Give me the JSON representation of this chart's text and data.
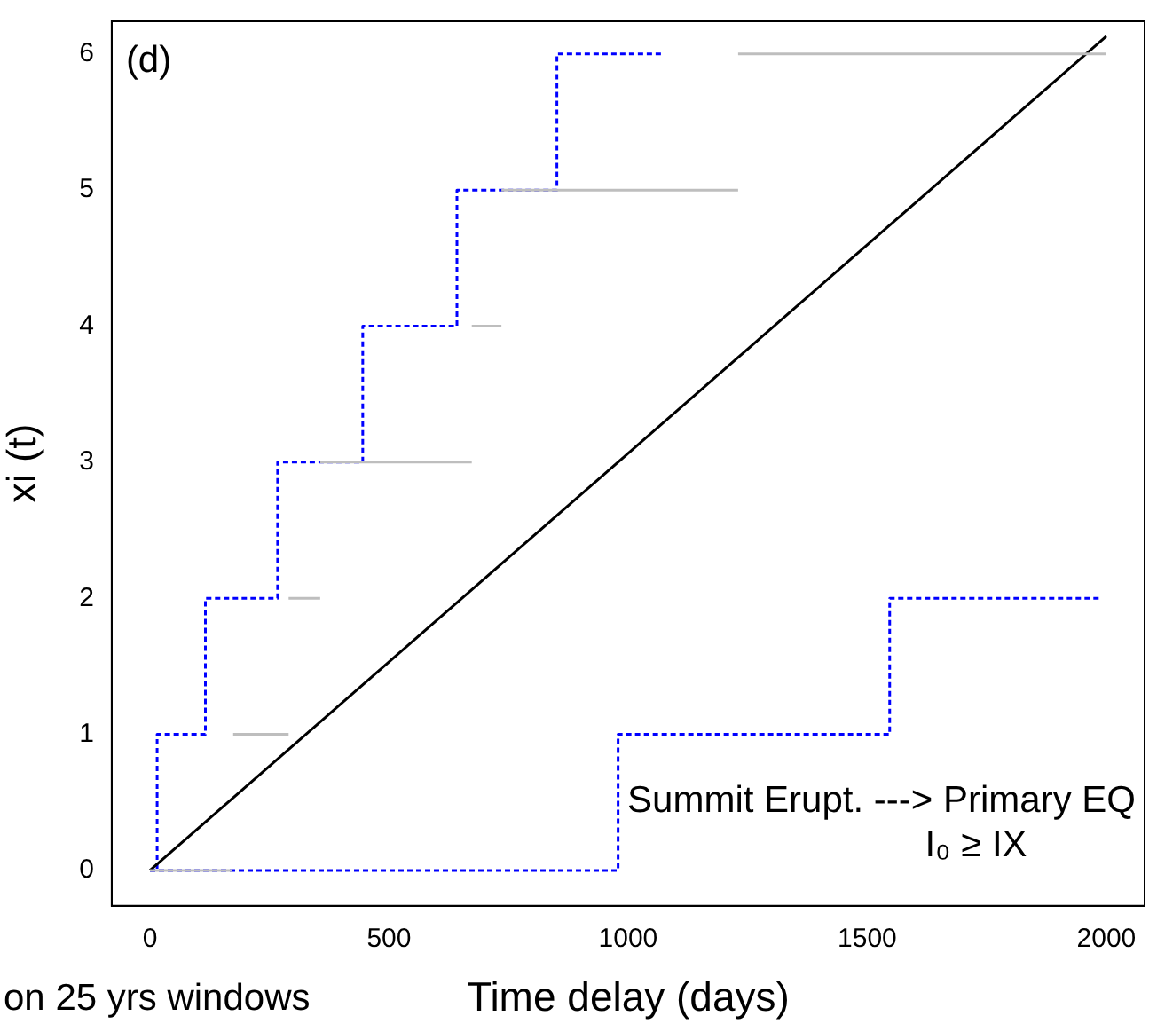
{
  "chart_data": {
    "type": "line",
    "xlabel": "Time delay (days)",
    "ylabel": "xi (t)",
    "xlim": [
      -80,
      2080
    ],
    "ylim": [
      -0.26,
      6.24
    ],
    "xticks": [
      0,
      500,
      1000,
      1500,
      2000
    ],
    "yticks": [
      0,
      1,
      2,
      3,
      4,
      5,
      6
    ],
    "grid": false,
    "legend": false,
    "marker": "none",
    "annotations": [
      "(d)",
      "Summit Erupt. ---> Primary EQ",
      "I₀ ≥ IX",
      "on 25 yrs windows"
    ],
    "series": [
      {
        "color": "#bebebe",
        "line_style": "solid",
        "x": [
          0,
          172
        ],
        "values": [
          0,
          0
        ]
      },
      {
        "color": "#bebebe",
        "line_style": "solid",
        "x": [
          174,
          290
        ],
        "values": [
          1,
          1
        ]
      },
      {
        "color": "#bebebe",
        "line_style": "solid",
        "x": [
          290,
          356
        ],
        "values": [
          2,
          2
        ]
      },
      {
        "color": "#bebebe",
        "line_style": "solid",
        "x": [
          356,
          673
        ],
        "values": [
          3,
          3
        ]
      },
      {
        "color": "#bebebe",
        "line_style": "solid",
        "x": [
          673,
          735
        ],
        "values": [
          4,
          4
        ]
      },
      {
        "color": "#bebebe",
        "line_style": "solid",
        "x": [
          735,
          1230
        ],
        "values": [
          5,
          5
        ]
      },
      {
        "color": "#bebebe",
        "line_style": "solid",
        "x": [
          1230,
          2000
        ],
        "values": [
          6,
          6
        ]
      },
      {
        "color": "#000000",
        "line_style": "solid",
        "x": [
          0,
          2000
        ],
        "values": [
          0,
          6.13
        ]
      },
      {
        "type": "step",
        "color": "#0000ff",
        "line_style": "dashed",
        "x": [
          0,
          15,
          116,
          267,
          445,
          642,
          851,
          1072
        ],
        "values": [
          0,
          1,
          2,
          3,
          4,
          5,
          6,
          6
        ]
      },
      {
        "type": "step",
        "color": "#0000ff",
        "line_style": "dashed",
        "x": [
          0,
          979,
          1547,
          1985
        ],
        "values": [
          0,
          1,
          2,
          2
        ]
      }
    ]
  }
}
